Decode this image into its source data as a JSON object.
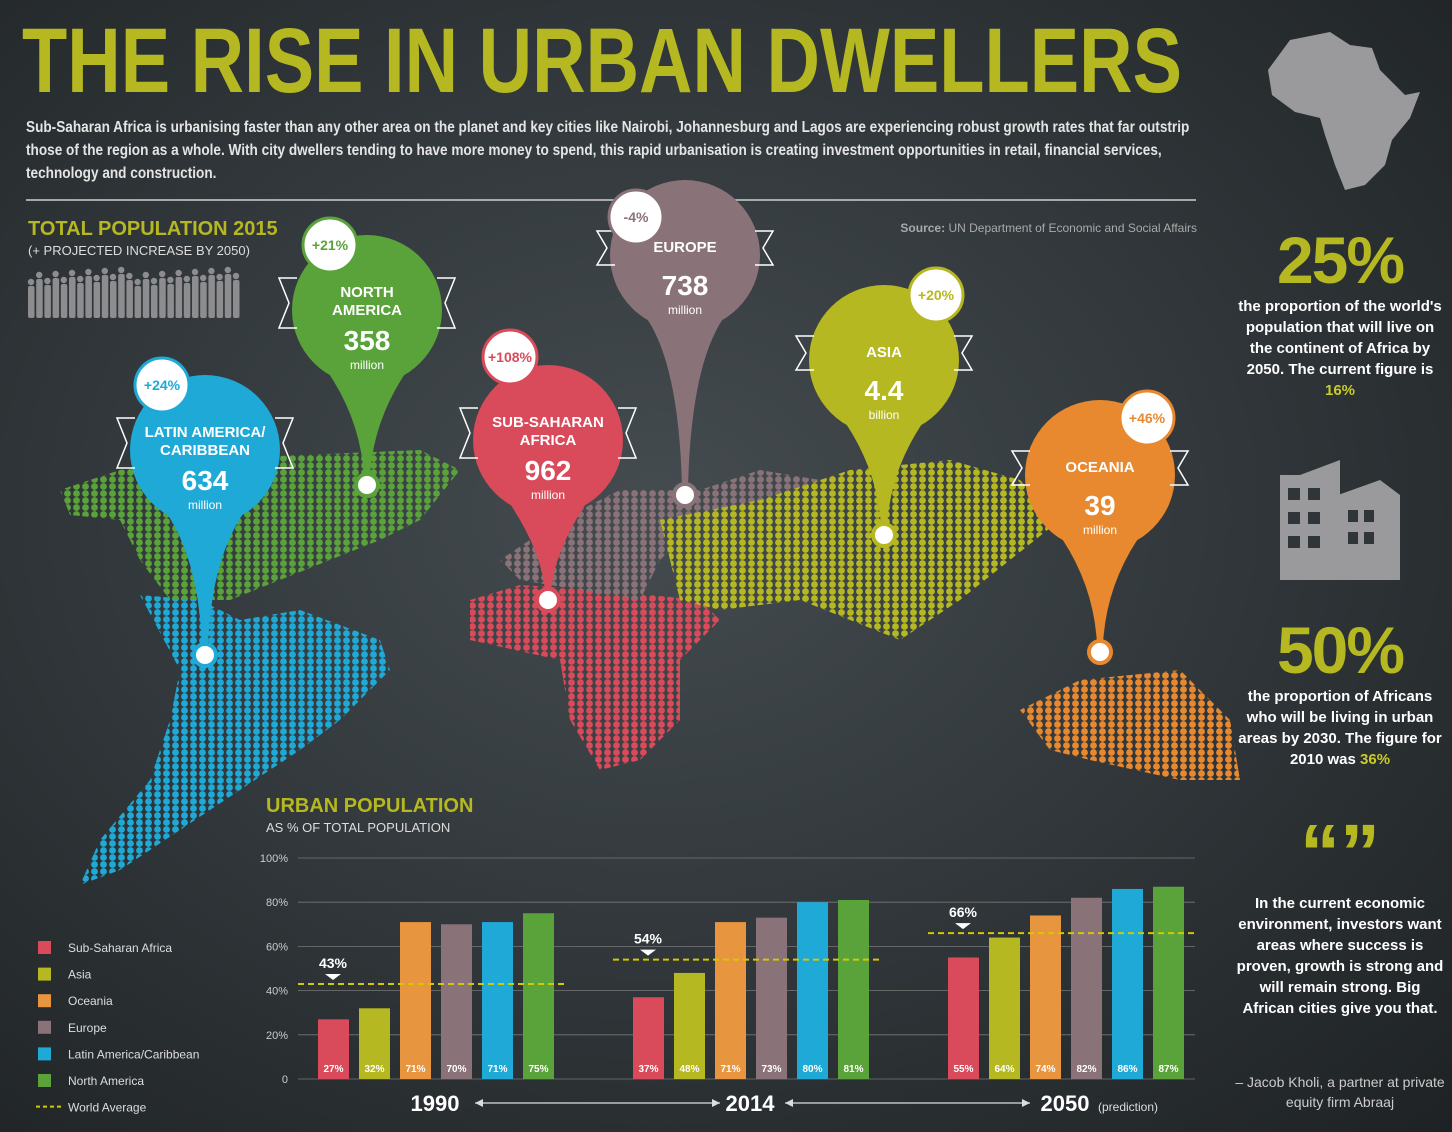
{
  "header": {
    "title": "THE RISE IN URBAN DWELLERS",
    "intro": "Sub-Saharan Africa is urbanising faster than any other area on the planet and key cities like Nairobi, Johannesburg and Lagos are experiencing robust growth rates that far outstrip those of the region as a whole. With city dwellers tending to have more money to spend, this rapid urbanisation is creating investment opportunities in retail, financial services, technology and construction."
  },
  "map": {
    "title": "TOTAL POPULATION 2015",
    "subtitle": "(+ PROJECTED INCREASE BY 2050)",
    "source": {
      "label": "Source:",
      "text": "UN Department of Economic and Social Affairs"
    },
    "regions": [
      {
        "name": [
          "LATIN AMERICA/",
          "CARIBBEAN"
        ],
        "population": "634",
        "unit": "million",
        "change": "+24%",
        "color": "#1fa9d6"
      },
      {
        "name": [
          "NORTH",
          "AMERICA"
        ],
        "population": "358",
        "unit": "million",
        "change": "+21%",
        "color": "#5aa33a"
      },
      {
        "name": [
          "SUB-SAHARAN",
          "AFRICA"
        ],
        "population": "962",
        "unit": "million",
        "change": "+108%",
        "color": "#d94a5a"
      },
      {
        "name": [
          "EUROPE"
        ],
        "population": "738",
        "unit": "million",
        "change": "-4%",
        "color": "#8a7378"
      },
      {
        "name": [
          "ASIA"
        ],
        "population": "4.4",
        "unit": "billion",
        "change": "+20%",
        "color": "#b5b820"
      },
      {
        "name": [
          "OCEANIA"
        ],
        "population": "39",
        "unit": "million",
        "change": "+46%",
        "color": "#e8892f"
      }
    ]
  },
  "chart_data": {
    "type": "bar",
    "title": "URBAN POPULATION",
    "subtitle": "AS % OF TOTAL POPULATION",
    "categories": [
      "1990",
      "2014",
      "2050"
    ],
    "annotation": "(prediction)",
    "ylim": [
      0,
      100
    ],
    "yticks": [
      0,
      {
        "value": 20,
        "label": "20%"
      },
      {
        "value": 40,
        "label": "40%"
      },
      {
        "value": 60,
        "label": "60%"
      },
      {
        "value": 80,
        "label": "80%"
      },
      {
        "value": 100,
        "label": "100%"
      }
    ],
    "grid": true,
    "series": [
      {
        "name": "Sub-Saharan Africa",
        "color": "#d94a5a",
        "values": [
          27,
          37,
          55
        ],
        "value_labels": [
          "27%",
          "37%",
          "55%"
        ]
      },
      {
        "name": "Asia",
        "color": "#b5b820",
        "values": [
          32,
          48,
          64
        ],
        "value_labels": [
          "32%",
          "48%",
          "64%"
        ]
      },
      {
        "name": "Oceania",
        "color": "#e8953f",
        "values": [
          71,
          71,
          74
        ],
        "value_labels": [
          "71%",
          "71%",
          "74%"
        ]
      },
      {
        "name": "Europe",
        "color": "#8a7378",
        "values": [
          70,
          73,
          82
        ],
        "value_labels": [
          "70%",
          "73%",
          "82%"
        ]
      },
      {
        "name": "Latin America/Caribbean",
        "color": "#1fa9d6",
        "values": [
          71,
          80,
          86
        ],
        "value_labels": [
          "71%",
          "80%",
          "86%"
        ]
      },
      {
        "name": "North America",
        "color": "#5aa33a",
        "values": [
          75,
          81,
          87
        ],
        "value_labels": [
          "75%",
          "81%",
          "87%"
        ]
      }
    ],
    "world_average": {
      "name": "World Average",
      "color": "#d4c800",
      "values": [
        43,
        54,
        66
      ],
      "value_labels": [
        "43%",
        "54%",
        "66%"
      ]
    }
  },
  "sidebar": {
    "stats": [
      {
        "value": "25%",
        "text": "the proportion of the world's population that will live on the continent of Africa by 2050. The current figure is",
        "highlight": "16%"
      },
      {
        "value": "50%",
        "text": "the proportion of Africans who will be living in urban areas by 2030. The figure for 2010 was",
        "highlight": "36%"
      }
    ],
    "quote": "In the current economic environment, investors want areas where success is proven, growth is strong and will remain strong. Big African cities give you that.",
    "attribution": "– Jacob Kholi, a partner at private equity firm Abraaj"
  }
}
